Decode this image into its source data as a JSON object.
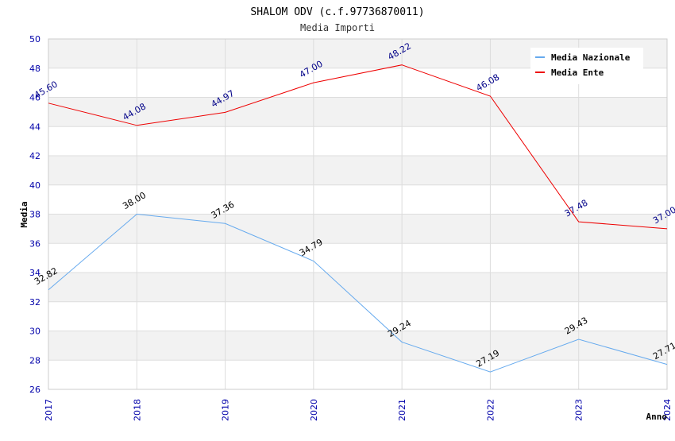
{
  "chart_data": {
    "type": "line",
    "title": "SHALOM ODV (c.f.97736870011)",
    "subtitle": "Media Importi",
    "xlabel": "Anno",
    "ylabel": "Media",
    "ylim": [
      26,
      50
    ],
    "y_ticks": [
      "26",
      "28",
      "30",
      "32",
      "34",
      "36",
      "38",
      "40",
      "42",
      "44",
      "46",
      "48",
      "50"
    ],
    "categories": [
      "2017",
      "2018",
      "2019",
      "2020",
      "2021",
      "2022",
      "2023",
      "2024"
    ],
    "legend_position": "top-right",
    "series": [
      {
        "name": "Media Nazionale",
        "color": "#66aaee",
        "label_color": "#000000",
        "values": [
          32.82,
          38.0,
          37.36,
          34.79,
          29.24,
          27.19,
          29.43,
          27.71
        ],
        "labels": [
          "32.82",
          "38.00",
          "37.36",
          "34.79",
          "29.24",
          "27.19",
          "29.43",
          "27.71"
        ]
      },
      {
        "name": "Media Ente",
        "color": "#ee0000",
        "label_color": "#000088",
        "values": [
          45.6,
          44.08,
          44.97,
          47.0,
          48.22,
          46.08,
          37.48,
          37.0
        ],
        "labels": [
          "45.60",
          "44.08",
          "44.97",
          "47.00",
          "48.22",
          "46.08",
          "37.48",
          "37.00"
        ]
      }
    ]
  }
}
